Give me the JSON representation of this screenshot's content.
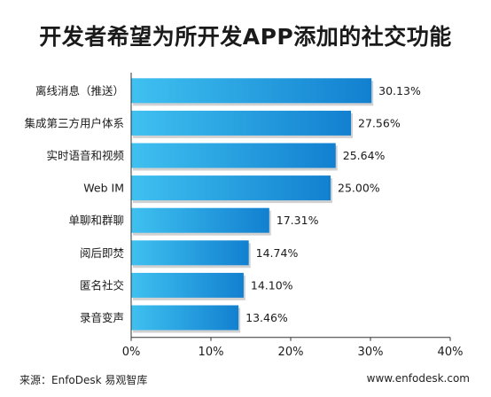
{
  "chart_data": {
    "type": "bar",
    "orientation": "horizontal",
    "title": "开发者希望为所开发APP添加的社交功能",
    "categories": [
      "离线消息（推送）",
      "集成第三方用户体系",
      "实时语音和视频",
      "Web IM",
      "单聊和群聊",
      "阅后即焚",
      "匿名社交",
      "录音变声"
    ],
    "values": [
      30.13,
      27.56,
      25.64,
      25.0,
      17.31,
      14.74,
      14.1,
      13.46
    ],
    "value_labels": [
      "30.13%",
      "27.56%",
      "25.64%",
      "25.00%",
      "17.31%",
      "14.74%",
      "14.10%",
      "13.46%"
    ],
    "xlim": [
      0,
      40
    ],
    "x_ticks": [
      "0%",
      "10%",
      "20%",
      "30%",
      "40%"
    ],
    "xlabel": "",
    "ylabel": "",
    "grid": false,
    "legend": "none",
    "bar_color": "#1a9be0"
  },
  "footer": {
    "source": "来源：EnfoDesk 易观智库",
    "url": "www.enfodesk.com"
  }
}
